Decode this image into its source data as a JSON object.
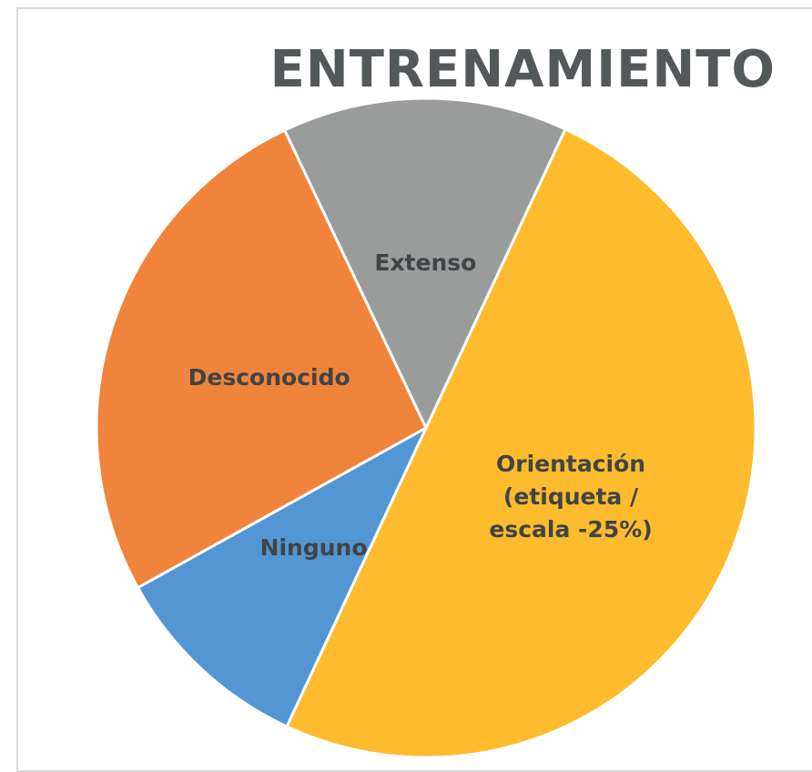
{
  "chart_data": {
    "type": "pie",
    "title": "ENTRENAMIENTO",
    "categories": [
      "Orientación (etiqueta / escala -25%)",
      "Ninguno",
      "Desconocido",
      "Extenso"
    ],
    "values": [
      50,
      10,
      26,
      14
    ],
    "colors": [
      "#fdbb2d",
      "#5297d3",
      "#f0843c",
      "#9a9c9c"
    ],
    "start_angle": 25
  }
}
